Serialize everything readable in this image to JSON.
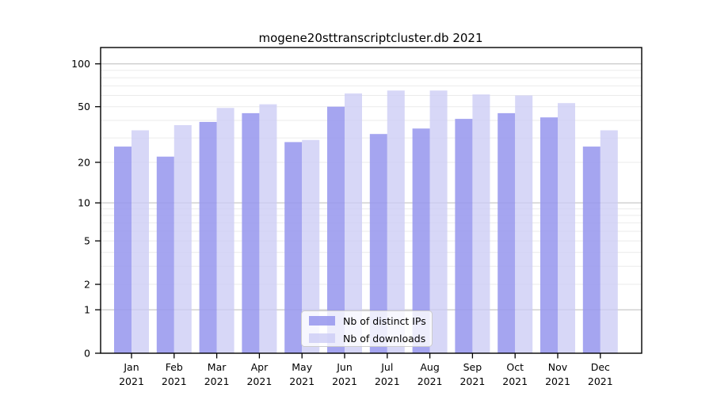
{
  "chart_data": {
    "type": "bar",
    "title": "mogene20sttranscriptcluster.db 2021",
    "categories": [
      "Jan",
      "Feb",
      "Mar",
      "Apr",
      "May",
      "Jun",
      "Jul",
      "Aug",
      "Sep",
      "Oct",
      "Nov",
      "Dec"
    ],
    "category_year": "2021",
    "series": [
      {
        "name": "Nb of distinct IPs",
        "color": "#9898ee",
        "fill_opacity": 0.87,
        "values": [
          26,
          22,
          39,
          45,
          28,
          50,
          32,
          35,
          41,
          45,
          42,
          26
        ]
      },
      {
        "name": "Nb of downloads",
        "color": "#ccccf5",
        "fill_opacity": 0.78,
        "values": [
          34,
          37,
          49,
          52,
          29,
          62,
          65,
          65,
          61,
          60,
          53,
          34
        ]
      }
    ],
    "xlabel": "",
    "ylabel": "",
    "y_axis": {
      "scale": "log10(1+x)",
      "ticks": [
        0,
        1,
        2,
        5,
        10,
        20,
        50,
        100
      ],
      "major_gridlines": [
        1,
        10,
        100
      ],
      "minor_gridlines": [
        2,
        3,
        4,
        5,
        6,
        7,
        8,
        9,
        20,
        30,
        40,
        50,
        60,
        70,
        80,
        90
      ],
      "ylim": [
        0,
        130
      ]
    },
    "grid": "on",
    "legend": {
      "position": "lower center",
      "entries": [
        "Nb of distinct IPs",
        "Nb of downloads"
      ]
    }
  },
  "colors": {
    "background": "#ffffff",
    "axis": "#000000",
    "major_grid": "#c8c8c8",
    "minor_grid": "#ebebeb",
    "legend_border": "#cccccc",
    "legend_background": "#ffffff"
  }
}
